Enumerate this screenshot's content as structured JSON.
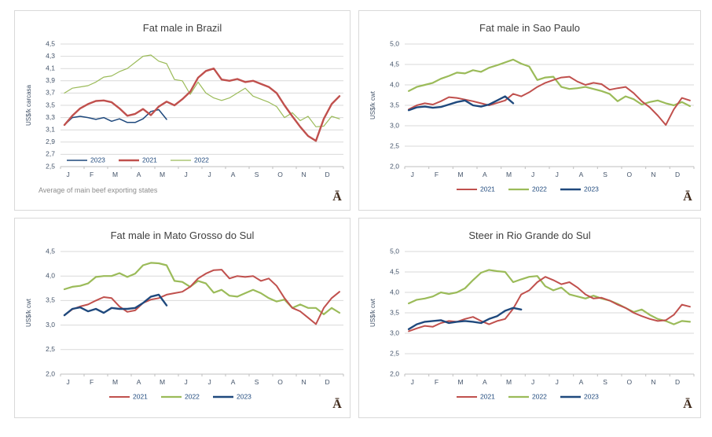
{
  "page": {
    "background": "#ffffff"
  },
  "theme": {
    "panel_border": "#d9d9d9",
    "panel_bg": "#ffffff",
    "grid_color": "#d9d9d9",
    "axis_color": "#bfbfbf",
    "title_color": "#404040",
    "tick_color": "#44546a",
    "legend_text_color": "#1f497d",
    "footnote_color": "#8c8c8c",
    "logo_color": "#402a1b",
    "series_colors": {
      "2021": "#c0504d",
      "2022": "#9bbb59",
      "2023": "#1f497d"
    }
  },
  "logo_glyph": "Ā",
  "chart_data": [
    {
      "type": "line",
      "title": "Fat male in Brazil",
      "ylabel": "US$/k carcasa",
      "ylim": [
        2.5,
        4.5
      ],
      "y_ticks": [
        "4,5",
        "4,3",
        "4,1",
        "3,9",
        "3,7",
        "3,5",
        "3,3",
        "3,1",
        "2,9",
        "2,7",
        "2,5"
      ],
      "x_tick_labels": [
        "J",
        "F",
        "M",
        "A",
        "M",
        "J",
        "J",
        "A",
        "S",
        "O",
        "N",
        "D"
      ],
      "x_samples_per_month": 3,
      "grid": "horizontal",
      "legend_position": "inside-bottom-left",
      "legend_order": [
        "2023",
        "2021",
        "2022"
      ],
      "footnote": "Average  of main beef exporting states",
      "series": [
        {
          "name": "2023",
          "color": "#1f497d",
          "line_width": 1.5,
          "values": [
            3.18,
            3.3,
            3.32,
            3.3,
            3.27,
            3.3,
            3.24,
            3.28,
            3.22,
            3.22,
            3.28,
            3.4,
            3.43,
            3.27
          ]
        },
        {
          "name": "2022",
          "color": "#9bbb59",
          "line_width": 1.2,
          "values": [
            3.7,
            3.78,
            3.8,
            3.82,
            3.88,
            3.96,
            3.98,
            4.05,
            4.1,
            4.2,
            4.3,
            4.32,
            4.22,
            4.18,
            3.92,
            3.9,
            3.68,
            3.88,
            3.7,
            3.62,
            3.58,
            3.62,
            3.7,
            3.78,
            3.65,
            3.6,
            3.55,
            3.48,
            3.3,
            3.38,
            3.25,
            3.32,
            3.15,
            3.16,
            3.32,
            3.28
          ]
        },
        {
          "name": "2021",
          "color": "#c0504d",
          "line_width": 2.4,
          "values": [
            3.18,
            3.33,
            3.45,
            3.52,
            3.57,
            3.58,
            3.55,
            3.45,
            3.33,
            3.36,
            3.44,
            3.34,
            3.48,
            3.56,
            3.5,
            3.6,
            3.72,
            3.95,
            4.06,
            4.1,
            3.92,
            3.9,
            3.93,
            3.88,
            3.9,
            3.85,
            3.8,
            3.7,
            3.5,
            3.32,
            3.15,
            3.0,
            2.92,
            3.28,
            3.52,
            3.65
          ]
        }
      ]
    },
    {
      "type": "line",
      "title": "Fat male in Sao Paulo",
      "ylabel": "US$/k cwt",
      "ylim": [
        2.0,
        5.0
      ],
      "y_ticks": [
        "5,0",
        "4,5",
        "4,0",
        "3,5",
        "3,0",
        "2,5",
        "2,0"
      ],
      "x_tick_labels": [
        "J",
        "F",
        "M",
        "A",
        "M",
        "J",
        "J",
        "A",
        "S",
        "O",
        "N",
        "D"
      ],
      "x_samples_per_month": 3,
      "grid": "horizontal",
      "legend_position": "below-center",
      "legend_order": [
        "2021",
        "2022",
        "2023"
      ],
      "footnote": "",
      "series": [
        {
          "name": "2022",
          "color": "#9bbb59",
          "line_width": 2.2,
          "values": [
            3.85,
            3.95,
            4.0,
            4.05,
            4.15,
            4.22,
            4.3,
            4.28,
            4.36,
            4.32,
            4.42,
            4.48,
            4.55,
            4.62,
            4.52,
            4.45,
            4.12,
            4.18,
            4.2,
            3.95,
            3.9,
            3.92,
            3.95,
            3.9,
            3.85,
            3.78,
            3.6,
            3.72,
            3.65,
            3.52,
            3.58,
            3.62,
            3.55,
            3.5,
            3.58,
            3.48
          ]
        },
        {
          "name": "2021",
          "color": "#c0504d",
          "line_width": 2.0,
          "values": [
            3.4,
            3.5,
            3.55,
            3.52,
            3.6,
            3.7,
            3.68,
            3.64,
            3.6,
            3.55,
            3.5,
            3.56,
            3.62,
            3.78,
            3.72,
            3.82,
            3.95,
            4.05,
            4.12,
            4.18,
            4.2,
            4.08,
            4.0,
            4.05,
            4.02,
            3.88,
            3.92,
            3.95,
            3.8,
            3.6,
            3.45,
            3.25,
            3.02,
            3.4,
            3.68,
            3.62
          ]
        },
        {
          "name": "2023",
          "color": "#1f497d",
          "line_width": 2.4,
          "values": [
            3.38,
            3.45,
            3.47,
            3.44,
            3.46,
            3.52,
            3.58,
            3.62,
            3.5,
            3.47,
            3.52,
            3.62,
            3.72,
            3.55
          ]
        }
      ]
    },
    {
      "type": "line",
      "title": "Fat male in Mato Grosso do Sul",
      "ylabel": "US$/k cwt",
      "ylim": [
        2.0,
        4.5
      ],
      "y_ticks": [
        "4,5",
        "4,0",
        "3,5",
        "3,0",
        "2,5",
        "2,0"
      ],
      "x_tick_labels": [
        "J",
        "F",
        "M",
        "A",
        "M",
        "J",
        "J",
        "A",
        "S",
        "O",
        "N",
        "D"
      ],
      "x_samples_per_month": 3,
      "grid": "horizontal",
      "legend_position": "below-center",
      "legend_order": [
        "2021",
        "2022",
        "2023"
      ],
      "footnote": "",
      "series": [
        {
          "name": "2022",
          "color": "#9bbb59",
          "line_width": 2.2,
          "values": [
            3.73,
            3.78,
            3.8,
            3.85,
            3.98,
            4.0,
            4.0,
            4.06,
            3.98,
            4.05,
            4.22,
            4.27,
            4.26,
            4.22,
            3.9,
            3.88,
            3.78,
            3.9,
            3.85,
            3.66,
            3.72,
            3.6,
            3.58,
            3.65,
            3.72,
            3.65,
            3.55,
            3.48,
            3.52,
            3.35,
            3.42,
            3.35,
            3.35,
            3.22,
            3.35,
            3.25
          ]
        },
        {
          "name": "2021",
          "color": "#c0504d",
          "line_width": 2.0,
          "values": [
            3.2,
            3.32,
            3.38,
            3.42,
            3.5,
            3.57,
            3.55,
            3.38,
            3.27,
            3.3,
            3.45,
            3.52,
            3.55,
            3.62,
            3.65,
            3.68,
            3.78,
            3.95,
            4.05,
            4.12,
            4.13,
            3.95,
            4.0,
            3.98,
            4.0,
            3.9,
            3.95,
            3.8,
            3.55,
            3.35,
            3.28,
            3.15,
            3.02,
            3.35,
            3.55,
            3.68
          ]
        },
        {
          "name": "2023",
          "color": "#1f497d",
          "line_width": 2.4,
          "values": [
            3.2,
            3.33,
            3.36,
            3.28,
            3.33,
            3.25,
            3.35,
            3.33,
            3.33,
            3.35,
            3.45,
            3.58,
            3.62,
            3.4
          ]
        }
      ]
    },
    {
      "type": "line",
      "title": "Steer in Rio Grande do Sul",
      "ylabel": "US$/k cwt",
      "ylim": [
        2.0,
        5.0
      ],
      "y_ticks": [
        "5,0",
        "4,5",
        "4,0",
        "3,5",
        "3,0",
        "2,5",
        "2,0"
      ],
      "x_tick_labels": [
        "J",
        "F",
        "M",
        "A",
        "M",
        "J",
        "J",
        "A",
        "S",
        "O",
        "N",
        "D"
      ],
      "x_samples_per_month": 3,
      "grid": "horizontal",
      "legend_position": "below-center",
      "legend_order": [
        "2021",
        "2022",
        "2023"
      ],
      "footnote": "",
      "series": [
        {
          "name": "2022",
          "color": "#9bbb59",
          "line_width": 2.2,
          "values": [
            3.73,
            3.82,
            3.85,
            3.9,
            4.0,
            3.96,
            4.0,
            4.1,
            4.3,
            4.48,
            4.55,
            4.52,
            4.5,
            4.25,
            4.32,
            4.38,
            4.4,
            4.15,
            4.05,
            4.12,
            3.95,
            3.9,
            3.85,
            3.92,
            3.85,
            3.8,
            3.72,
            3.62,
            3.52,
            3.58,
            3.45,
            3.35,
            3.3,
            3.22,
            3.3,
            3.28
          ]
        },
        {
          "name": "2021",
          "color": "#c0504d",
          "line_width": 2.0,
          "values": [
            3.05,
            3.12,
            3.18,
            3.16,
            3.25,
            3.3,
            3.28,
            3.35,
            3.4,
            3.3,
            3.22,
            3.3,
            3.35,
            3.6,
            3.95,
            4.05,
            4.25,
            4.38,
            4.3,
            4.2,
            4.25,
            4.12,
            3.95,
            3.85,
            3.87,
            3.8,
            3.7,
            3.62,
            3.5,
            3.42,
            3.35,
            3.3,
            3.32,
            3.45,
            3.7,
            3.65
          ]
        },
        {
          "name": "2023",
          "color": "#1f497d",
          "line_width": 2.4,
          "values": [
            3.1,
            3.22,
            3.28,
            3.3,
            3.32,
            3.25,
            3.28,
            3.3,
            3.28,
            3.25,
            3.35,
            3.42,
            3.55,
            3.62,
            3.58
          ]
        }
      ]
    }
  ]
}
